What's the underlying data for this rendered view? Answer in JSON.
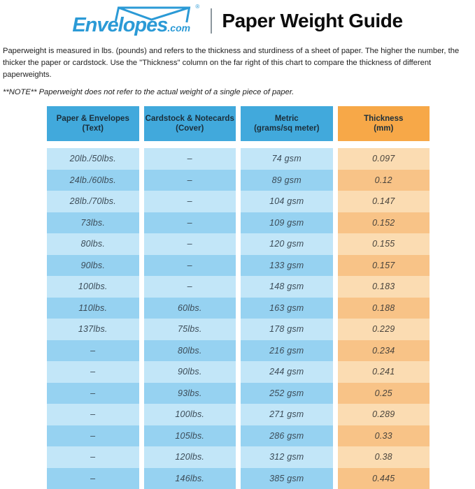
{
  "brand": {
    "logo_text": "Envelopes",
    "logo_suffix": ".com",
    "registered_mark": "®",
    "logo_color": "#2b9ad6"
  },
  "header": {
    "title": "Paper Weight Guide"
  },
  "intro": {
    "paragraph": "Paperweight is measured in lbs. (pounds) and refers to the thickness and sturdiness of a sheet of paper. The higher the number, the thicker the paper or cardstock. Use the \"Thickness\" column on the far right of this chart to compare the thickness of different paperweights.",
    "note": "**NOTE** Paperweight does not refer to the actual weight of a single piece of paper."
  },
  "colors": {
    "header_blue": "#41a9dc",
    "header_orange": "#f7a848",
    "row_blue_light": "#c2e6f8",
    "row_blue_dark": "#96d2f1",
    "row_orange_light": "#fbdcb2",
    "row_orange_dark": "#f8c387",
    "logo_blue": "#2b9ad6"
  },
  "chart_data": {
    "type": "table",
    "title": "Paper Weight Guide",
    "columns": [
      {
        "label": "Paper & Envelopes",
        "sublabel": "(Text)",
        "header_color": "#41a9dc"
      },
      {
        "label": "Cardstock & Notecards",
        "sublabel": "(Cover)",
        "header_color": "#41a9dc"
      },
      {
        "label": "Metric",
        "sublabel": "(grams/sq meter)",
        "header_color": "#f7a848"
      },
      {
        "label": "Thickness",
        "sublabel": "(mm)",
        "header_color": "#f7a848"
      }
    ],
    "rows": [
      [
        "20lb./50lbs.",
        "–",
        "74 gsm",
        "0.097"
      ],
      [
        "24lb./60lbs.",
        "–",
        "89 gsm",
        "0.12"
      ],
      [
        "28lb./70lbs.",
        "–",
        "104 gsm",
        "0.147"
      ],
      [
        "73lbs.",
        "–",
        "109 gsm",
        "0.152"
      ],
      [
        "80lbs.",
        "–",
        "120 gsm",
        "0.155"
      ],
      [
        "90lbs.",
        "–",
        "133 gsm",
        "0.157"
      ],
      [
        "100lbs.",
        "–",
        "148 gsm",
        "0.183"
      ],
      [
        "110lbs.",
        "60lbs.",
        "163 gsm",
        "0.188"
      ],
      [
        "137lbs.",
        "75lbs.",
        "178 gsm",
        "0.229"
      ],
      [
        "–",
        "80lbs.",
        "216 gsm",
        "0.234"
      ],
      [
        "–",
        "90lbs.",
        "244 gsm",
        "0.241"
      ],
      [
        "–",
        "93lbs.",
        "252 gsm",
        "0.25"
      ],
      [
        "–",
        "100lbs.",
        "271 gsm",
        "0.289"
      ],
      [
        "–",
        "105lbs.",
        "286 gsm",
        "0.33"
      ],
      [
        "–",
        "120lbs.",
        "312 gsm",
        "0.38"
      ],
      [
        "–",
        "146lbs.",
        "385 gsm",
        "0.445"
      ]
    ]
  }
}
